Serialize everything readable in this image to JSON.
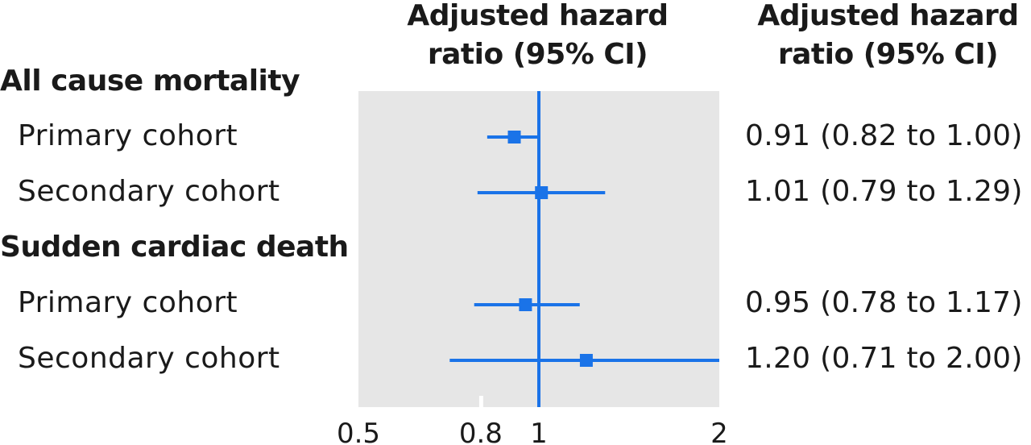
{
  "headers": {
    "plot": "Adjusted hazard ratio (95% CI)",
    "ci": "Adjusted hazard ratio (95% CI)"
  },
  "groups": [
    {
      "label": "All cause mortality"
    },
    {
      "label": "Sudden cardiac death"
    }
  ],
  "rows": [
    {
      "label": "Primary cohort",
      "ci_text": "0.91 (0.82 to 1.00)"
    },
    {
      "label": "Secondary cohort",
      "ci_text": "1.01 (0.79 to 1.29)"
    },
    {
      "label": "Primary cohort",
      "ci_text": "0.95 (0.78 to 1.17)"
    },
    {
      "label": "Secondary cohort",
      "ci_text": "1.20 (0.71 to 2.00)"
    }
  ],
  "chart_data": {
    "type": "forest",
    "scale": "log",
    "xlim": [
      0.5,
      2
    ],
    "x_ticks": [
      "0.5",
      "0.8",
      "1",
      "2"
    ],
    "reference_line": 1,
    "color": "#1a73e8",
    "panel_color": "#e6e6e6",
    "series": [
      {
        "group": "All cause mortality",
        "name": "Primary cohort",
        "estimate": 0.91,
        "lower": 0.82,
        "upper": 1.0
      },
      {
        "group": "All cause mortality",
        "name": "Secondary cohort",
        "estimate": 1.01,
        "lower": 0.79,
        "upper": 1.29
      },
      {
        "group": "Sudden cardiac death",
        "name": "Primary cohort",
        "estimate": 0.95,
        "lower": 0.78,
        "upper": 1.17
      },
      {
        "group": "Sudden cardiac death",
        "name": "Secondary cohort",
        "estimate": 1.2,
        "lower": 0.71,
        "upper": 2.0
      }
    ]
  }
}
